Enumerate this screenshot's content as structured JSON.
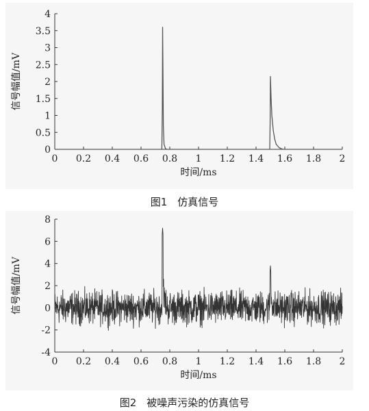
{
  "captions": [
    "图1　仿真信号",
    "图2　被噪声污染的仿真信号"
  ],
  "chart_data": [
    {
      "type": "line",
      "xlabel": "时间/ms",
      "ylabel": "信号幅值/mV",
      "xlim": [
        0,
        2
      ],
      "ylim": [
        0,
        4
      ],
      "xticks": [
        0,
        0.2,
        0.4,
        0.6,
        0.8,
        1,
        1.2,
        1.4,
        1.6,
        1.8,
        2
      ],
      "yticks": [
        0,
        0.5,
        1,
        1.5,
        2,
        2.5,
        3,
        3.5,
        4
      ],
      "series": [
        {
          "color": "#555555",
          "points": [
            [
              0,
              0
            ],
            [
              0.745,
              0
            ],
            [
              0.748,
              1.2
            ],
            [
              0.75,
              3.6
            ],
            [
              0.752,
              2.6
            ],
            [
              0.755,
              0.7
            ],
            [
              0.76,
              0.15
            ],
            [
              0.77,
              0.02
            ],
            [
              0.78,
              0
            ],
            [
              1.495,
              0
            ],
            [
              1.498,
              0.8
            ],
            [
              1.5,
              2.15
            ],
            [
              1.505,
              1.5
            ],
            [
              1.51,
              1.0
            ],
            [
              1.52,
              0.55
            ],
            [
              1.53,
              0.3
            ],
            [
              1.54,
              0.15
            ],
            [
              1.56,
              0.05
            ],
            [
              1.58,
              0.01
            ],
            [
              1.6,
              0
            ],
            [
              2,
              0
            ]
          ]
        }
      ]
    },
    {
      "type": "line",
      "xlabel": "时间/ms",
      "ylabel": "信号幅值/mV",
      "xlim": [
        0,
        2
      ],
      "ylim": [
        -4,
        8
      ],
      "xticks": [
        0,
        0.2,
        0.4,
        0.6,
        0.8,
        1,
        1.2,
        1.4,
        1.6,
        1.8,
        2
      ],
      "yticks": [
        -4,
        -2,
        0,
        2,
        4,
        6,
        8
      ],
      "noise_amplitude": 1.2,
      "series": [
        {
          "color": "#333333",
          "description_peaks": [
            [
              0.75,
              7.2
            ],
            [
              1.5,
              3.8
            ]
          ]
        }
      ]
    }
  ]
}
